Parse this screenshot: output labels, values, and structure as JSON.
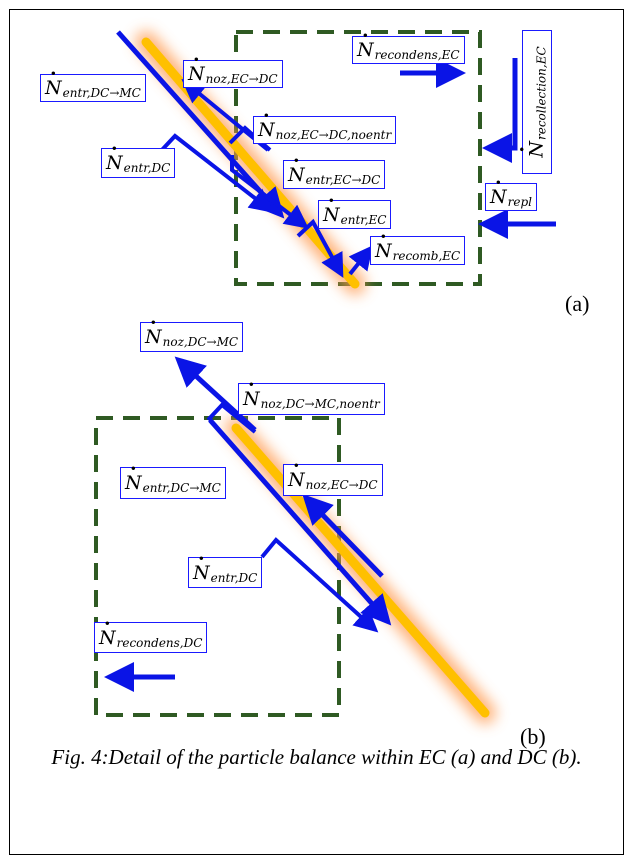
{
  "panel_a": {
    "tag": "(a)",
    "labels": {
      "entr_dc_mc": {
        "symbol": "N",
        "subscript": "entr,DC→MC"
      },
      "noz_ec_dc": {
        "symbol": "N",
        "subscript": "noz,EC→DC"
      },
      "noz_ec_dc_noentr": {
        "symbol": "N",
        "subscript": "noz,EC→DC,noentr"
      },
      "entr_dc": {
        "symbol": "N",
        "subscript": "entr,DC"
      },
      "entr_ec_dc": {
        "symbol": "N",
        "subscript": "entr,EC→DC"
      },
      "entr_ec": {
        "symbol": "N",
        "subscript": "entr,EC"
      },
      "recomb_ec": {
        "symbol": "N",
        "subscript": "recomb,EC"
      },
      "recondens_ec": {
        "symbol": "N",
        "subscript": "recondens,EC"
      },
      "recollection_ec": {
        "symbol": "N",
        "subscript": "recollection,EC"
      },
      "repl": {
        "symbol": "N",
        "subscript": "repl"
      }
    }
  },
  "panel_b": {
    "tag": "(b)",
    "labels": {
      "noz_dc_mc": {
        "symbol": "N",
        "subscript": "noz,DC→MC"
      },
      "noz_dc_mc_noentr": {
        "symbol": "N",
        "subscript": "noz,DC→MC,noentr"
      },
      "entr_dc_mc": {
        "symbol": "N",
        "subscript": "entr,DC→MC"
      },
      "noz_ec_dc": {
        "symbol": "N",
        "subscript": "noz,EC→DC"
      },
      "entr_dc": {
        "symbol": "N",
        "subscript": "entr,DC"
      },
      "recondens_dc": {
        "symbol": "N",
        "subscript": "recondens,DC"
      }
    }
  },
  "caption": {
    "text": "Fig. 4:Detail of the particle balance within EC (a) and DC (b)."
  },
  "colors": {
    "arrow": "#0a14e6",
    "box_border": "#1a1aff",
    "dashed": "#2f5a23",
    "beam": "#ffc000",
    "glow": "#ffb070"
  }
}
